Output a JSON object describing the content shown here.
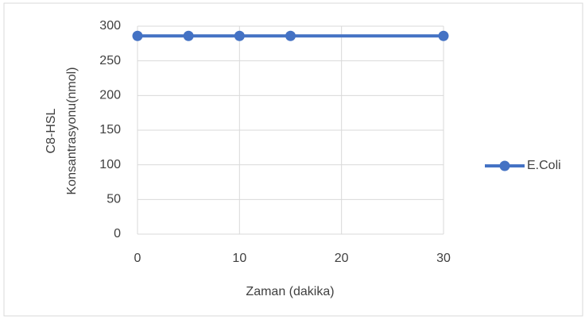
{
  "chart_data": {
    "type": "line",
    "x_label": "Zaman (dakika)",
    "y_label": [
      "C8-HSL",
      "Konsantrasyonu(nmol)"
    ],
    "x": [
      0,
      5,
      10,
      15,
      30
    ],
    "series": [
      {
        "name": "E.Coli",
        "color": "#4472c4",
        "values": [
          286,
          286,
          286,
          286,
          286
        ]
      }
    ],
    "xlim": [
      0,
      30
    ],
    "xticks": [
      0,
      10,
      20,
      30
    ],
    "ylim": [
      0,
      300
    ],
    "yticks": [
      0,
      50,
      100,
      150,
      200,
      250,
      300
    ],
    "grid": true,
    "legend": "right"
  }
}
